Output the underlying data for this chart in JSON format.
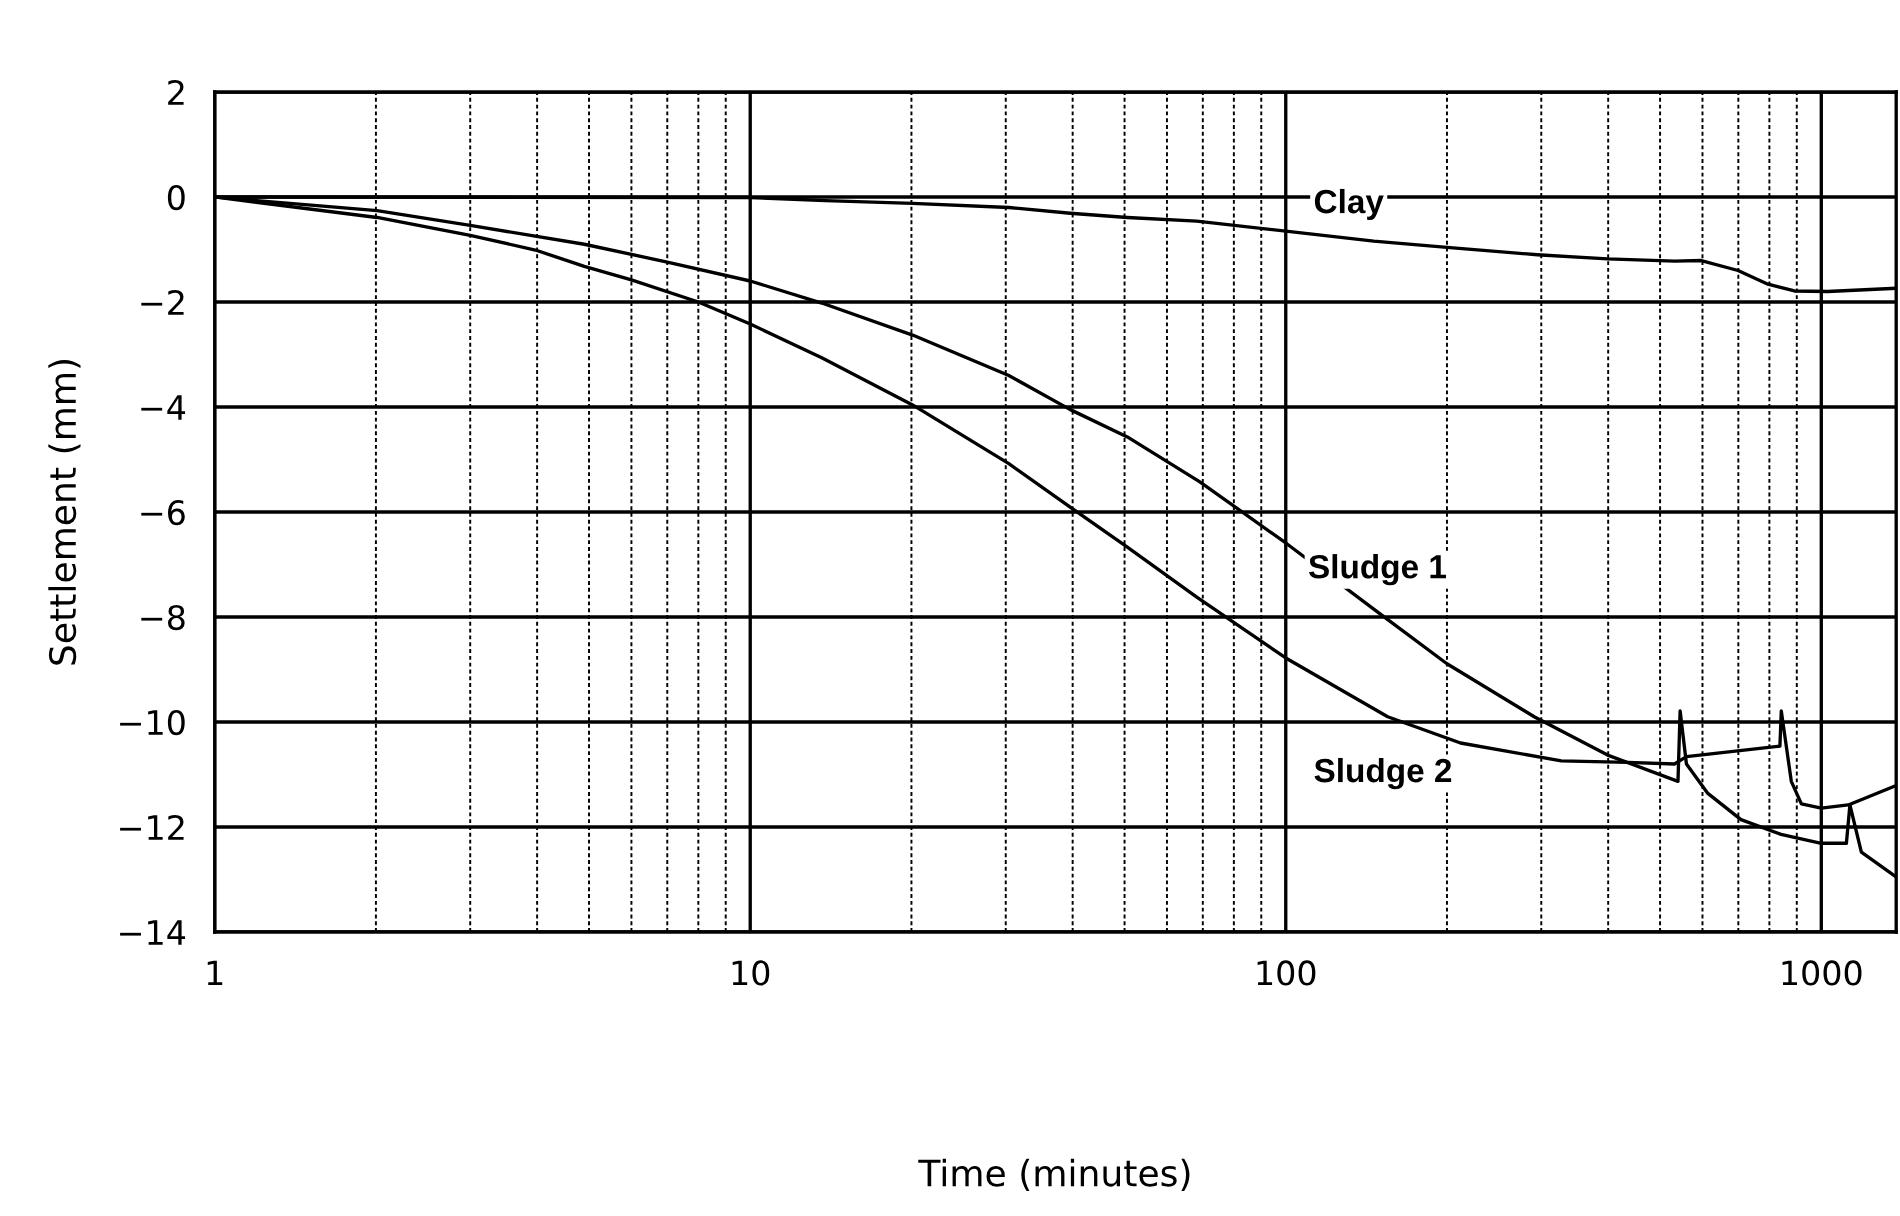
{
  "chart_data": {
    "type": "line",
    "xlabel": "Time (minutes)",
    "ylabel": "Settlement (mm)",
    "log": "x",
    "xlim": [
      1,
      1380
    ],
    "xticks": [
      1,
      10,
      100,
      1000
    ],
    "ylim": [
      -14,
      2
    ],
    "yticks": [
      -14,
      -12,
      -10,
      -8,
      -6,
      -4,
      -2,
      0,
      2
    ],
    "grid": true,
    "legend": false,
    "marker": "none",
    "line_style": "solid",
    "series": [
      {
        "name": "Clay",
        "color": "#000000",
        "x": [
          1,
          10,
          13.8,
          20.1,
          30.4,
          39.6,
          50.6,
          68.2,
          100,
          146,
          200,
          295,
          399,
          532,
          597,
          699,
          795,
          891,
          1028,
          1371
        ],
        "values": [
          0,
          -0.01,
          -0.07,
          -0.12,
          -0.2,
          -0.31,
          -0.39,
          -0.46,
          -0.65,
          -0.84,
          -0.96,
          -1.1,
          -1.18,
          -1.22,
          -1.21,
          -1.4,
          -1.66,
          -1.79,
          -1.8,
          -1.74
        ]
      },
      {
        "name": "Sludge 1",
        "color": "#000000",
        "x": [
          1,
          2.01,
          3,
          4.9,
          7,
          10,
          13.6,
          20.1,
          30.4,
          39.6,
          50.6,
          69,
          100,
          150,
          200,
          291,
          399,
          540,
          545,
          560,
          614,
          708,
          841,
          1000,
          1114,
          1131,
          1188,
          1371
        ],
        "values": [
          0,
          -0.26,
          -0.54,
          -0.9,
          -1.24,
          -1.6,
          -2.02,
          -2.63,
          -3.4,
          -4.05,
          -4.57,
          -5.42,
          -6.59,
          -7.94,
          -8.89,
          -9.9,
          -10.63,
          -11.13,
          -9.79,
          -10.8,
          -11.36,
          -11.86,
          -12.14,
          -12.31,
          -12.31,
          -11.58,
          -12.48,
          -12.93
        ]
      },
      {
        "name": "Sludge 2",
        "color": "#000000",
        "x": [
          1,
          2.01,
          3,
          3.97,
          4.9,
          6,
          8,
          10,
          13.6,
          20.1,
          30.4,
          40.5,
          50.6,
          68.2,
          100,
          155,
          212,
          327,
          435,
          532,
          560,
          837,
          842,
          879,
          918,
          1000,
          1123,
          1371
        ],
        "values": [
          0,
          -0.39,
          -0.73,
          -1.01,
          -1.32,
          -1.58,
          -2,
          -2.42,
          -3.06,
          -3.96,
          -5.08,
          -5.98,
          -6.67,
          -7.62,
          -8.78,
          -9.9,
          -10.4,
          -10.74,
          -10.77,
          -10.8,
          -10.66,
          -10.46,
          -9.79,
          -11.13,
          -11.56,
          -11.64,
          -11.58,
          -11.22
        ]
      }
    ]
  }
}
